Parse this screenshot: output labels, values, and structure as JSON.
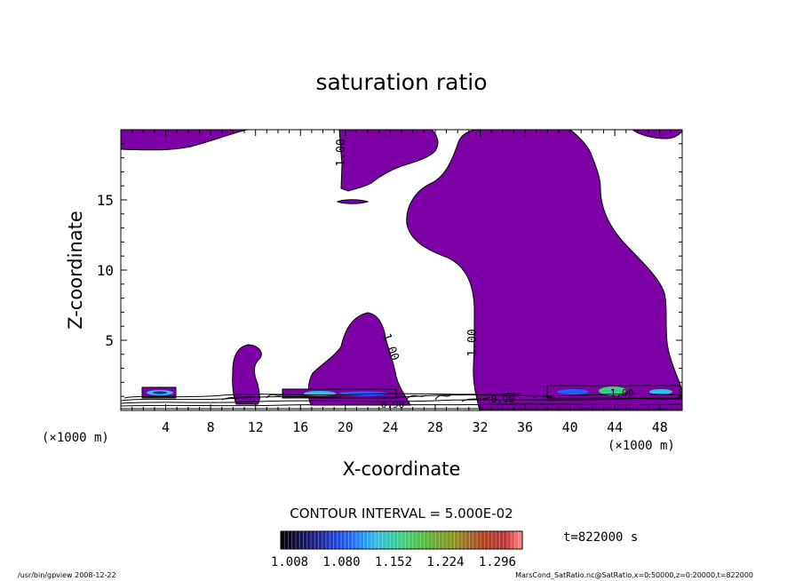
{
  "chart_data": {
    "type": "contour",
    "title": "saturation ratio",
    "xlabel": "X-coordinate",
    "ylabel": "Z-coordinate",
    "x_unit": "(×1000 m)",
    "y_unit": "(×1000 m)",
    "xlim": [
      0,
      50
    ],
    "ylim": [
      0,
      20
    ],
    "x_ticks": [
      "4",
      "8",
      "12",
      "16",
      "20",
      "24",
      "28",
      "32",
      "36",
      "40",
      "44",
      "48"
    ],
    "y_ticks": [
      "5",
      "10",
      "15"
    ],
    "contour_interval_label": "CONTOUR INTERVAL = 5.000E-02",
    "contour_labels": [
      "1.00",
      "1.00",
      "1.00",
      "0.90",
      "0.90",
      "1.00"
    ],
    "fill_color": "#7d00a6",
    "colorbar_ticks": [
      "1.008",
      "1.080",
      "1.152",
      "1.224",
      "1.296"
    ],
    "colorbar_colors": [
      "#000000",
      "#1f1f8f",
      "#2060ff",
      "#30c0e0",
      "#40d070",
      "#60b030",
      "#8f8f20",
      "#b04020",
      "#c03030",
      "#ff9090"
    ],
    "time_label": "t=822000 s",
    "footer_left": "/usr/bin/gpview  2008-12-22",
    "footer_right": "MarsCond_SatRatio.nc@SatRatio,x=0:50000,z=0:20000,t=822000"
  }
}
